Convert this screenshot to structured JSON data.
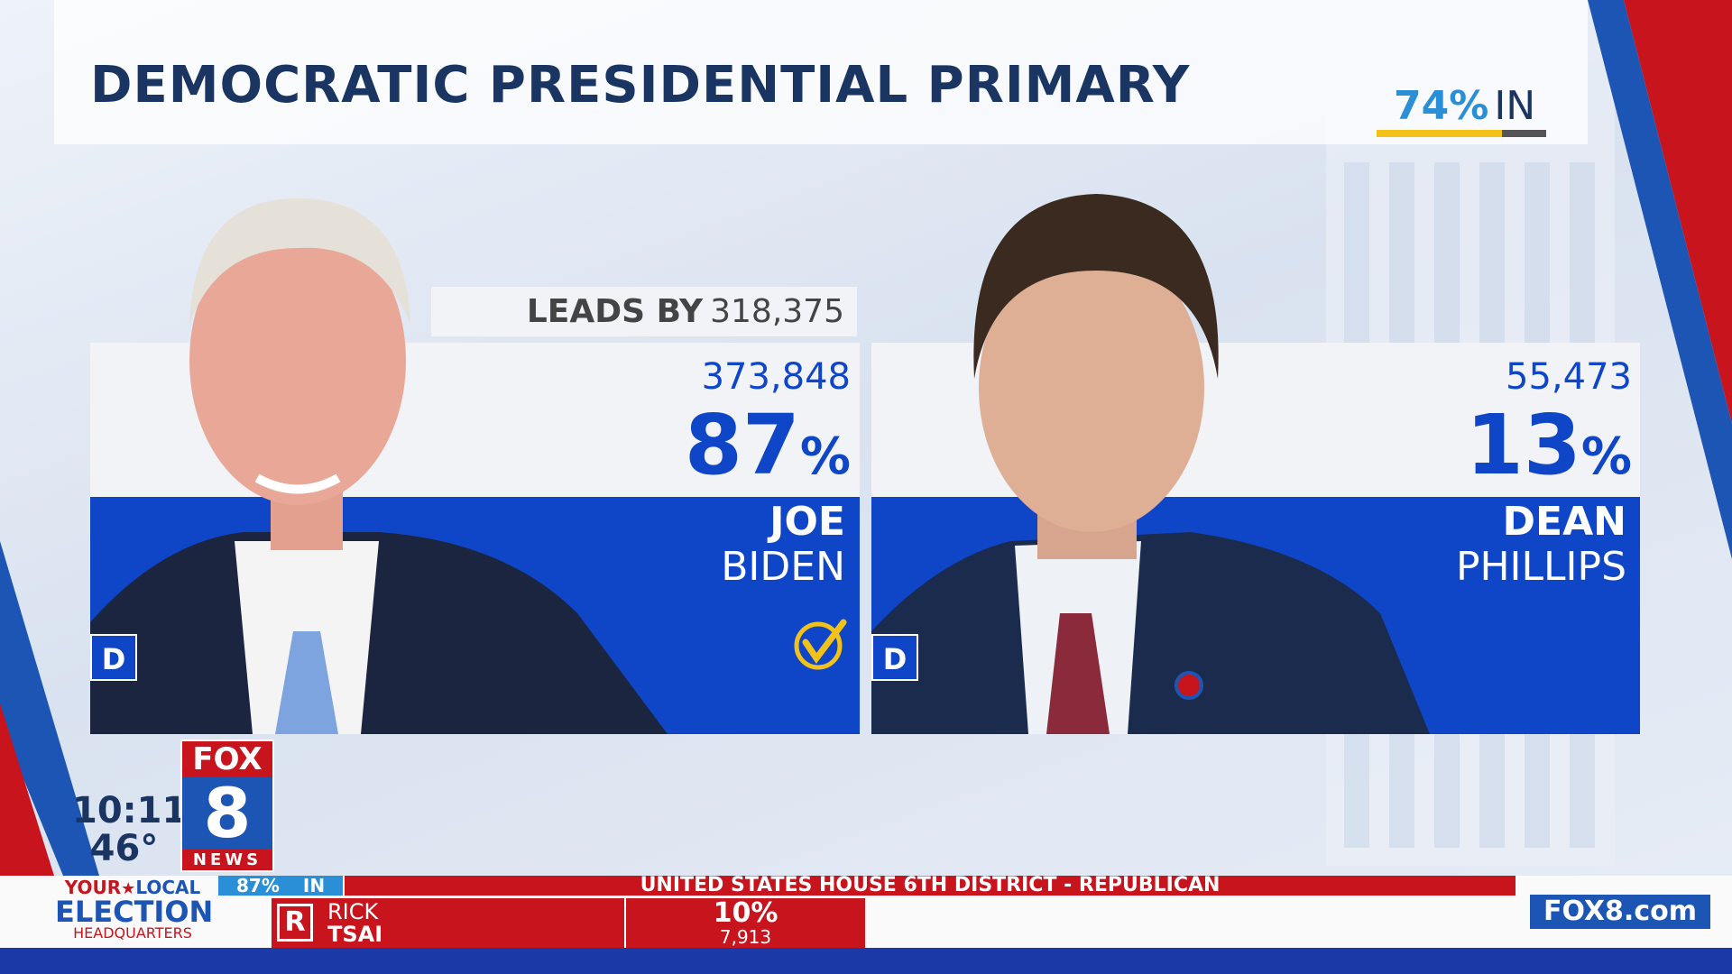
{
  "header": {
    "title": "DEMOCRATIC PRESIDENTIAL PRIMARY",
    "reporting": {
      "value": 74,
      "label": "74%",
      "suffix": "IN"
    }
  },
  "candidates": [
    {
      "party": "D",
      "first_name": "JOE",
      "last_name": "BIDEN",
      "votes": "373,848",
      "percent": "87",
      "percent_sign": "%",
      "leads_by_label": "LEADS BY",
      "leads_by": "318,375"
    },
    {
      "party": "D",
      "first_name": "DEAN",
      "last_name": "PHILLIPS",
      "votes": "55,473",
      "percent": "13",
      "percent_sign": "%"
    }
  ],
  "status": {
    "time": "10:11",
    "temperature": "46°"
  },
  "logo": {
    "brand": "FOX",
    "number": "8",
    "sub": "NEWS"
  },
  "ticker": {
    "branding": [
      "YOUR",
      "LOCAL",
      "ELECTION",
      "HEADQUARTERS"
    ],
    "reporting": "87%",
    "reporting_suffix": "IN",
    "race": "UNITED STATES HOUSE 6TH DISTRICT - REPUBLICAN",
    "candidate": {
      "party": "R",
      "first_name": "RICK",
      "last_name": "TSAI",
      "percent": "10%",
      "votes": "7,913"
    },
    "website": "FOX8.com"
  }
}
